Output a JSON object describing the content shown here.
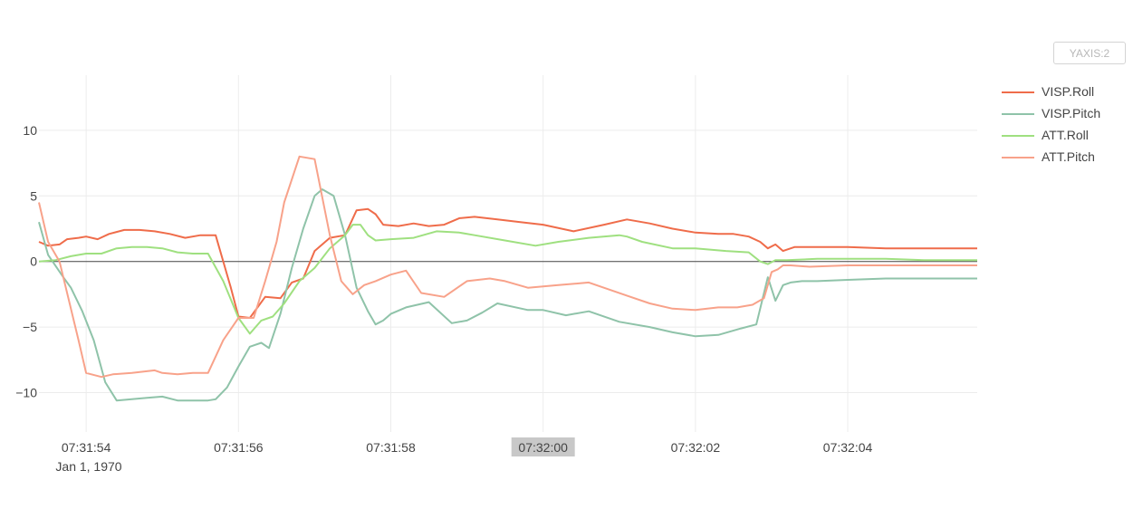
{
  "toolbar": {
    "yaxis_button_label": "YAXIS:2"
  },
  "chart_data": {
    "type": "line",
    "x_tick_labels": [
      "07:31:54",
      "07:31:56",
      "07:31:58",
      "07:32:00",
      "07:32:02",
      "07:32:04"
    ],
    "x_tick_values": [
      0,
      2,
      4,
      6,
      8,
      10
    ],
    "x_date_label": "Jan 1, 1970",
    "highlighted_x_tick": "07:32:00",
    "y_ticks": [
      10,
      5,
      0,
      -5,
      -10
    ],
    "y_tick_labels": [
      "10",
      "5",
      "0",
      "−5",
      "−10"
    ],
    "ylim": [
      -13,
      14.2
    ],
    "xlim": [
      -0.62,
      11.7
    ],
    "grid": true,
    "legend_position": "right",
    "series": [
      {
        "name": "VISP.Roll",
        "color": "#ef6c4a",
        "x": [
          -0.62,
          -0.5,
          -0.35,
          -0.25,
          -0.1,
          0.0,
          0.15,
          0.3,
          0.5,
          0.7,
          0.9,
          1.1,
          1.3,
          1.5,
          1.7,
          1.9,
          2.0,
          2.15,
          2.35,
          2.55,
          2.7,
          2.85,
          3.0,
          3.2,
          3.4,
          3.55,
          3.7,
          3.8,
          3.9,
          4.1,
          4.3,
          4.5,
          4.7,
          4.9,
          5.1,
          5.4,
          5.7,
          6.0,
          6.4,
          6.8,
          7.1,
          7.4,
          7.7,
          8.0,
          8.3,
          8.5,
          8.7,
          8.85,
          8.95,
          9.05,
          9.15,
          9.3,
          9.6,
          10.0,
          10.5,
          11.0,
          11.7
        ],
        "y": [
          1.5,
          1.2,
          1.3,
          1.7,
          1.8,
          1.9,
          1.7,
          2.1,
          2.4,
          2.4,
          2.3,
          2.1,
          1.8,
          2.0,
          2.0,
          -2.0,
          -4.2,
          -4.3,
          -2.7,
          -2.8,
          -1.6,
          -1.3,
          0.8,
          1.8,
          2.0,
          3.9,
          4.0,
          3.6,
          2.8,
          2.7,
          2.9,
          2.7,
          2.8,
          3.3,
          3.4,
          3.2,
          3.0,
          2.8,
          2.3,
          2.8,
          3.2,
          2.9,
          2.5,
          2.2,
          2.1,
          2.1,
          1.9,
          1.5,
          1.0,
          1.3,
          0.8,
          1.1,
          1.1,
          1.1,
          1.0,
          1.0,
          1.0
        ]
      },
      {
        "name": "VISP.Pitch",
        "color": "#8fc3a9",
        "x": [
          -0.62,
          -0.5,
          -0.3,
          -0.2,
          -0.05,
          0.1,
          0.25,
          0.4,
          0.6,
          0.8,
          1.0,
          1.2,
          1.4,
          1.6,
          1.7,
          1.85,
          2.0,
          2.15,
          2.3,
          2.4,
          2.55,
          2.7,
          2.85,
          3.0,
          3.1,
          3.25,
          3.4,
          3.55,
          3.7,
          3.8,
          3.9,
          4.0,
          4.2,
          4.5,
          4.8,
          5.0,
          5.2,
          5.4,
          5.8,
          6.0,
          6.3,
          6.6,
          7.0,
          7.4,
          7.7,
          8.0,
          8.3,
          8.6,
          8.8,
          8.95,
          9.05,
          9.15,
          9.25,
          9.4,
          9.6,
          10.0,
          10.5,
          11.0,
          11.7
        ],
        "y": [
          3.0,
          0.5,
          -1.2,
          -2.0,
          -3.8,
          -6.0,
          -9.2,
          -10.6,
          -10.5,
          -10.4,
          -10.3,
          -10.6,
          -10.6,
          -10.6,
          -10.5,
          -9.6,
          -8.0,
          -6.5,
          -6.2,
          -6.6,
          -4.0,
          -0.5,
          2.5,
          5.0,
          5.5,
          5.0,
          2.0,
          -2.0,
          -3.8,
          -4.8,
          -4.5,
          -4.0,
          -3.5,
          -3.1,
          -4.7,
          -4.5,
          -3.9,
          -3.2,
          -3.7,
          -3.7,
          -4.1,
          -3.8,
          -4.6,
          -5.0,
          -5.4,
          -5.7,
          -5.6,
          -5.1,
          -4.8,
          -1.2,
          -3.0,
          -1.8,
          -1.6,
          -1.5,
          -1.5,
          -1.4,
          -1.3,
          -1.3,
          -1.3
        ]
      },
      {
        "name": "ATT.Roll",
        "color": "#9fe080",
        "x": [
          -0.62,
          -0.4,
          -0.2,
          0.0,
          0.2,
          0.4,
          0.6,
          0.8,
          1.0,
          1.2,
          1.4,
          1.6,
          1.8,
          2.0,
          2.15,
          2.3,
          2.45,
          2.6,
          2.8,
          3.0,
          3.2,
          3.4,
          3.5,
          3.6,
          3.7,
          3.8,
          4.0,
          4.3,
          4.6,
          4.9,
          5.1,
          5.5,
          5.9,
          6.2,
          6.6,
          7.0,
          7.1,
          7.3,
          7.7,
          8.0,
          8.4,
          8.7,
          8.85,
          8.95,
          9.05,
          9.2,
          9.6,
          10.0,
          10.5,
          11.0,
          11.7
        ],
        "y": [
          0.0,
          0.1,
          0.4,
          0.6,
          0.6,
          1.0,
          1.1,
          1.1,
          1.0,
          0.7,
          0.6,
          0.6,
          -1.5,
          -4.3,
          -5.5,
          -4.5,
          -4.2,
          -3.2,
          -1.5,
          -0.5,
          1.0,
          2.0,
          2.8,
          2.8,
          2.0,
          1.6,
          1.7,
          1.8,
          2.3,
          2.2,
          2.0,
          1.6,
          1.2,
          1.5,
          1.8,
          2.0,
          1.9,
          1.5,
          1.0,
          1.0,
          0.8,
          0.7,
          0.0,
          -0.2,
          0.1,
          0.1,
          0.2,
          0.2,
          0.2,
          0.1,
          0.1
        ]
      },
      {
        "name": "ATT.Pitch",
        "color": "#f8a28a",
        "x": [
          -0.62,
          -0.5,
          -0.35,
          -0.1,
          0.0,
          0.2,
          0.35,
          0.6,
          0.9,
          1.0,
          1.2,
          1.4,
          1.6,
          1.8,
          2.0,
          2.2,
          2.35,
          2.5,
          2.6,
          2.8,
          3.0,
          3.2,
          3.35,
          3.5,
          3.65,
          3.8,
          4.0,
          4.2,
          4.4,
          4.7,
          4.9,
          5.0,
          5.3,
          5.5,
          5.8,
          6.2,
          6.6,
          7.1,
          7.4,
          7.7,
          8.0,
          8.3,
          8.55,
          8.75,
          8.9,
          9.0,
          9.08,
          9.15,
          9.25,
          9.5,
          10.0,
          10.5,
          11.0,
          11.7
        ],
        "y": [
          4.5,
          1.5,
          0.0,
          -6.0,
          -8.5,
          -8.8,
          -8.6,
          -8.5,
          -8.3,
          -8.5,
          -8.6,
          -8.5,
          -8.5,
          -6.0,
          -4.3,
          -4.3,
          -1.5,
          1.5,
          4.5,
          8.0,
          7.8,
          2.0,
          -1.5,
          -2.5,
          -1.8,
          -1.5,
          -1.0,
          -0.7,
          -2.4,
          -2.7,
          -1.9,
          -1.5,
          -1.3,
          -1.5,
          -2.0,
          -1.8,
          -1.6,
          -2.6,
          -3.2,
          -3.6,
          -3.7,
          -3.5,
          -3.5,
          -3.3,
          -2.8,
          -0.8,
          -0.6,
          -0.3,
          -0.3,
          -0.4,
          -0.3,
          -0.3,
          -0.3,
          -0.3
        ]
      }
    ]
  }
}
